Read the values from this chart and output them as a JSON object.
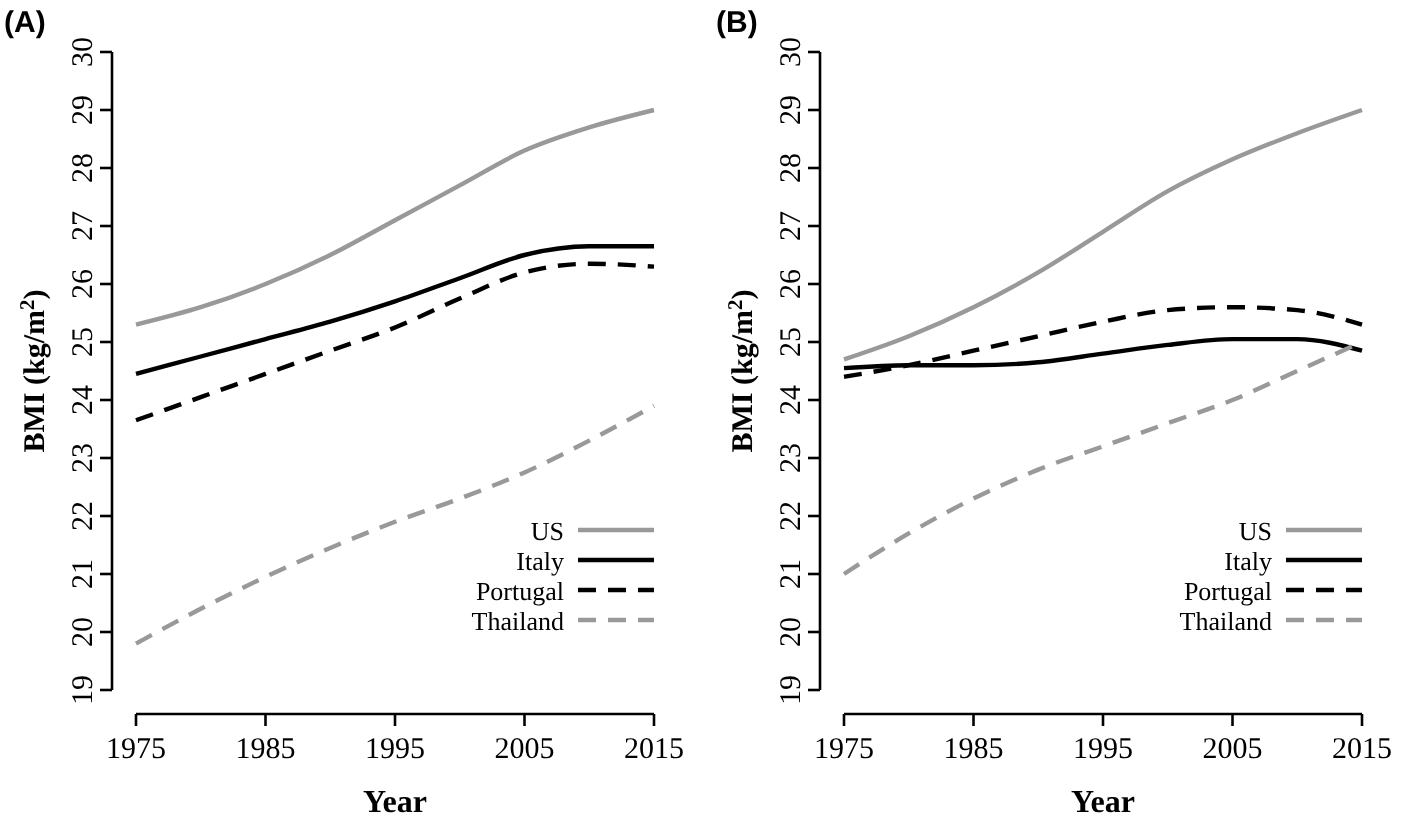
{
  "chart_data": [
    {
      "type": "line",
      "title": "(A)",
      "xlabel": "Year",
      "ylabel": "BMI (kg/m$^{2}$)",
      "x": [
        1975,
        1980,
        1985,
        1990,
        1995,
        2000,
        2005,
        2010,
        2015
      ],
      "xlim": [
        1975,
        2015
      ],
      "xticks": [
        1975,
        1985,
        1995,
        2005,
        2015
      ],
      "ylim": [
        19,
        30
      ],
      "yticks": [
        19,
        20,
        21,
        22,
        23,
        24,
        25,
        26,
        27,
        28,
        29,
        30
      ],
      "grid": false,
      "legend": "bottom right",
      "marker": "none",
      "series": [
        {
          "name": "US",
          "color": "#999999",
          "line_style": "solid",
          "values": [
            25.3,
            25.6,
            26.0,
            26.5,
            27.1,
            27.7,
            28.3,
            28.7,
            29.0
          ]
        },
        {
          "name": "Italy",
          "color": "#000000",
          "line_style": "solid",
          "values": [
            24.45,
            24.75,
            25.05,
            25.35,
            25.7,
            26.1,
            26.5,
            26.65,
            26.65
          ]
        },
        {
          "name": "Portugal",
          "color": "#000000",
          "line_style": "dashed",
          "values": [
            23.65,
            24.05,
            24.45,
            24.85,
            25.25,
            25.75,
            26.2,
            26.35,
            26.3
          ]
        },
        {
          "name": "Thailand",
          "color": "#999999",
          "line_style": "dashed",
          "values": [
            19.8,
            20.4,
            20.95,
            21.45,
            21.9,
            22.3,
            22.75,
            23.3,
            23.9
          ]
        }
      ]
    },
    {
      "type": "line",
      "title": "(B)",
      "xlabel": "Year",
      "ylabel": "BMI (kg/m$^{2}$)",
      "x": [
        1975,
        1980,
        1985,
        1990,
        1995,
        2000,
        2005,
        2010,
        2015
      ],
      "xlim": [
        1975,
        2015
      ],
      "xticks": [
        1975,
        1985,
        1995,
        2005,
        2015
      ],
      "ylim": [
        19,
        30
      ],
      "yticks": [
        19,
        20,
        21,
        22,
        23,
        24,
        25,
        26,
        27,
        28,
        29,
        30
      ],
      "grid": false,
      "legend": "bottom right",
      "marker": "none",
      "series": [
        {
          "name": "US",
          "color": "#999999",
          "line_style": "solid",
          "values": [
            24.7,
            25.1,
            25.6,
            26.2,
            26.9,
            27.6,
            28.15,
            28.6,
            29.0
          ]
        },
        {
          "name": "Italy",
          "color": "#000000",
          "line_style": "solid",
          "values": [
            24.55,
            24.6,
            24.6,
            24.65,
            24.8,
            24.95,
            25.05,
            25.05,
            24.85
          ]
        },
        {
          "name": "Portugal",
          "color": "#000000",
          "line_style": "dashed",
          "values": [
            24.4,
            24.6,
            24.85,
            25.1,
            25.35,
            25.55,
            25.6,
            25.55,
            25.3
          ]
        },
        {
          "name": "Thailand",
          "color": "#999999",
          "line_style": "dashed",
          "values": [
            21.0,
            21.7,
            22.3,
            22.8,
            23.2,
            23.6,
            24.0,
            24.5,
            25.0
          ]
        }
      ]
    }
  ]
}
